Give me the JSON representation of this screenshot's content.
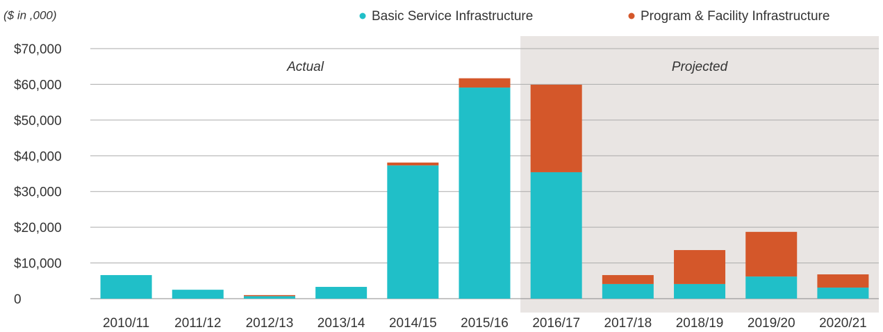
{
  "chart_data": {
    "type": "stacked_bar",
    "unit_note": "($ in ,000)",
    "categories": [
      "2010/11",
      "2011/12",
      "2012/13",
      "2013/14",
      "2014/15",
      "2015/16",
      "2016/17",
      "2017/18",
      "2018/19",
      "2019/20",
      "2020/21"
    ],
    "series": [
      {
        "name": "Basic Service Infrastructure",
        "color": "#20bfc8",
        "values": [
          6600,
          2500,
          700,
          3300,
          37300,
          59100,
          35400,
          4100,
          4100,
          6200,
          3100
        ]
      },
      {
        "name": "Program & Facility Infrastructure",
        "color": "#d4572a",
        "values": [
          0,
          0,
          300,
          0,
          800,
          2600,
          24500,
          2500,
          9500,
          12500,
          3700
        ]
      }
    ],
    "ylim": [
      0,
      70000
    ],
    "yticks": [
      0,
      {
        "value": 10000,
        "label": "$10,000"
      },
      {
        "value": 20000,
        "label": "$20,000"
      },
      {
        "value": 30000,
        "label": "$30,000"
      },
      {
        "value": 40000,
        "label": "$40,000"
      },
      {
        "value": 50000,
        "label": "$50,000"
      },
      {
        "value": 60000,
        "label": "$60,000"
      },
      {
        "value": 70000,
        "label": "$70,000"
      }
    ],
    "grid": true,
    "legend": "top-right",
    "regions": [
      {
        "label": "Actual",
        "from": "2010/11",
        "to": "2015/16",
        "shade": null
      },
      {
        "label": "Projected",
        "from": "2016/17",
        "to": "2020/21",
        "shade": "#e9e5e3"
      }
    ]
  }
}
